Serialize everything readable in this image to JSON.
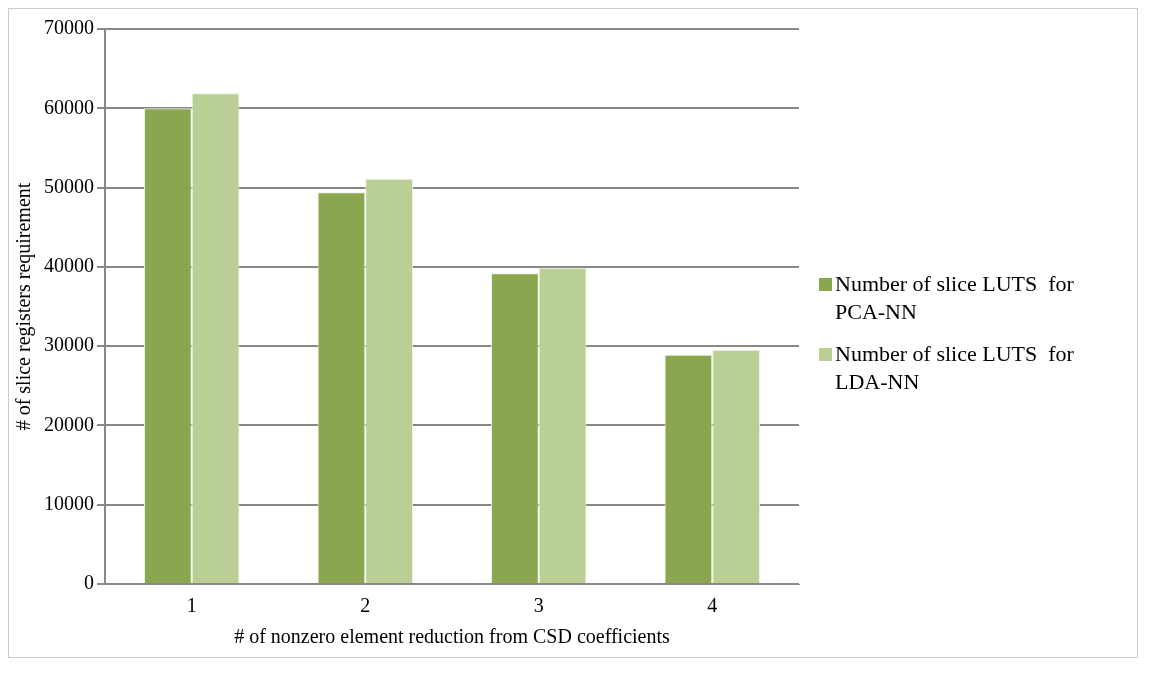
{
  "chart_data": {
    "type": "bar",
    "xlabel": "# of nonzero element reduction from CSD coefficients",
    "ylabel": "# of slice registers requirement",
    "categories": [
      "1",
      "2",
      "3",
      "4"
    ],
    "series": [
      {
        "name": "Number of slice LUTS  for PCA-NN",
        "color": "#8aa64e",
        "values": [
          60000,
          49400,
          39200,
          28900
        ]
      },
      {
        "name": "Number of slice LUTS  for LDA-NN",
        "color": "#b9cf96",
        "values": [
          61900,
          51100,
          39900,
          29500
        ]
      }
    ],
    "ylim": [
      0,
      70000
    ],
    "yticks": [
      0,
      10000,
      20000,
      30000,
      40000,
      50000,
      60000,
      70000
    ],
    "grid": "y",
    "legend": "right"
  }
}
